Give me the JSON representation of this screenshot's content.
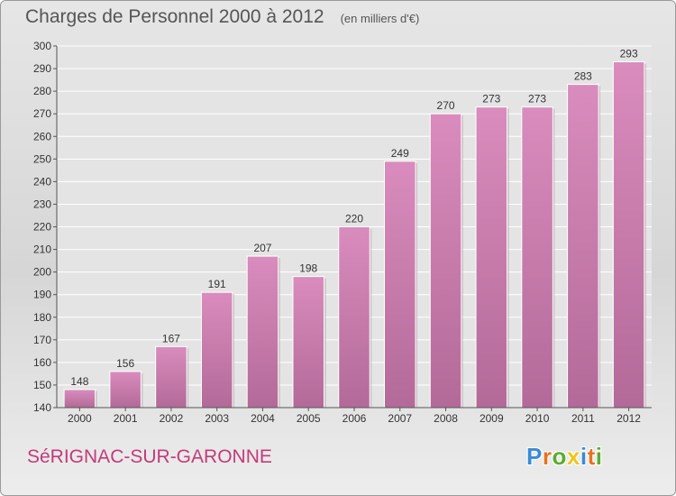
{
  "chart_data": {
    "type": "bar",
    "title": "Charges de Personnel 2000 à 2012",
    "subtitle": "(en milliers d'€)",
    "categories": [
      "2000",
      "2001",
      "2002",
      "2003",
      "2004",
      "2005",
      "2006",
      "2007",
      "2008",
      "2009",
      "2010",
      "2011",
      "2012"
    ],
    "values": [
      148,
      156,
      167,
      191,
      207,
      198,
      220,
      249,
      270,
      273,
      273,
      283,
      293
    ],
    "ylim": [
      140,
      300
    ],
    "yticks": [
      140,
      150,
      160,
      170,
      180,
      190,
      200,
      210,
      220,
      230,
      240,
      250,
      260,
      270,
      280,
      290,
      300
    ],
    "grid": true,
    "bar_color": "#d98cbd",
    "bar_color_dark": "#b36a99"
  },
  "footer": {
    "city": "SéRIGNAC-SUR-GARONNE",
    "city_color": "#c23b7b"
  },
  "logo": {
    "letters": [
      {
        "char": "P",
        "color": "#3a8ad6"
      },
      {
        "char": "r",
        "color": "#e8731f"
      },
      {
        "char": "o",
        "color": "#5aac2e"
      },
      {
        "char": "x",
        "color": "#f0c419"
      },
      {
        "char": "i",
        "color": "#3a8ad6"
      },
      {
        "char": "t",
        "color": "#e8731f"
      },
      {
        "char": "i",
        "color": "#5aac2e"
      }
    ]
  }
}
